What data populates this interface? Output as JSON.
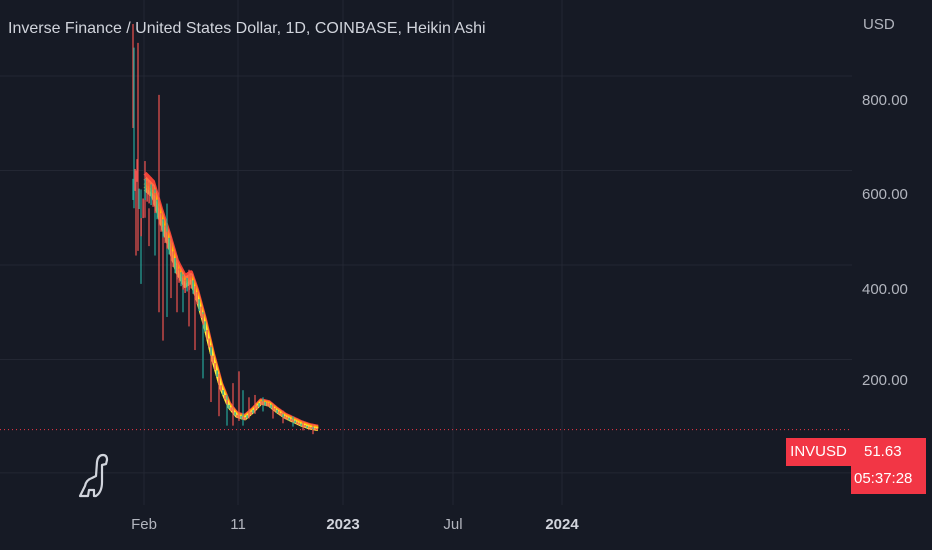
{
  "header": {
    "title": "Inverse Finance / United States Dollar, 1D, COINBASE, Heikin Ashi",
    "currency": "USD"
  },
  "price_tag": {
    "symbol": "INVUSD",
    "price": "51.63",
    "countdown": "05:37:28"
  },
  "colors": {
    "background": "#161A25",
    "up": "#26A69A",
    "down": "#EF5350",
    "tag": "#F23645",
    "ribbon": [
      "#F44336",
      "#FF7043",
      "#FF9800",
      "#FFC107",
      "#FFEB3B"
    ]
  },
  "logo_icon": "dinosaur-icon",
  "chart_data": {
    "type": "candlestick",
    "title": "Inverse Finance / United States Dollar, 1D, COINBASE, Heikin Ashi",
    "y_axis": {
      "label": "USD",
      "ticks": [
        "800.00",
        "600.00",
        "400.00",
        "200.00"
      ],
      "tick_values": [
        800,
        600,
        400,
        200
      ],
      "range": [
        -80,
        980
      ]
    },
    "x_axis": {
      "ticks": [
        "Feb",
        "11",
        "2023",
        "Jul",
        "2024"
      ],
      "bold_ticks": [
        "2023",
        "2024"
      ]
    },
    "last_price": 51.63,
    "trend": [
      {
        "x": 0,
        "y": 560
      },
      {
        "x": 4,
        "y": 600
      },
      {
        "x": 8,
        "y": 480
      },
      {
        "x": 12,
        "y": 560
      },
      {
        "x": 20,
        "y": 545
      },
      {
        "x": 28,
        "y": 490
      },
      {
        "x": 36,
        "y": 440
      },
      {
        "x": 44,
        "y": 385
      },
      {
        "x": 52,
        "y": 355
      },
      {
        "x": 58,
        "y": 365
      },
      {
        "x": 64,
        "y": 330
      },
      {
        "x": 72,
        "y": 270
      },
      {
        "x": 80,
        "y": 200
      },
      {
        "x": 88,
        "y": 140
      },
      {
        "x": 96,
        "y": 100
      },
      {
        "x": 104,
        "y": 80
      },
      {
        "x": 112,
        "y": 75
      },
      {
        "x": 120,
        "y": 90
      },
      {
        "x": 128,
        "y": 108
      },
      {
        "x": 136,
        "y": 104
      },
      {
        "x": 144,
        "y": 90
      },
      {
        "x": 152,
        "y": 78
      },
      {
        "x": 160,
        "y": 70
      },
      {
        "x": 168,
        "y": 62
      },
      {
        "x": 176,
        "y": 56
      },
      {
        "x": 185,
        "y": 52
      }
    ],
    "spikes": [
      {
        "x": 0,
        "high": 910,
        "low": 690
      },
      {
        "x": 1,
        "high": 860,
        "low": 520
      },
      {
        "x": 3,
        "high": 600,
        "low": 420
      },
      {
        "x": 5,
        "high": 870,
        "low": 430
      },
      {
        "x": 8,
        "high": 560,
        "low": 360
      },
      {
        "x": 12,
        "high": 620,
        "low": 500
      },
      {
        "x": 16,
        "high": 520,
        "low": 440
      },
      {
        "x": 22,
        "high": 560,
        "low": 420
      },
      {
        "x": 26,
        "high": 760,
        "low": 300
      },
      {
        "x": 30,
        "high": 480,
        "low": 240
      },
      {
        "x": 34,
        "high": 530,
        "low": 290
      },
      {
        "x": 38,
        "high": 460,
        "low": 330
      },
      {
        "x": 44,
        "high": 420,
        "low": 300
      },
      {
        "x": 50,
        "high": 380,
        "low": 300
      },
      {
        "x": 56,
        "high": 390,
        "low": 270
      },
      {
        "x": 62,
        "high": 350,
        "low": 220
      },
      {
        "x": 70,
        "high": 300,
        "low": 160
      },
      {
        "x": 78,
        "high": 230,
        "low": 110
      },
      {
        "x": 86,
        "high": 170,
        "low": 80
      },
      {
        "x": 94,
        "high": 125,
        "low": 60
      },
      {
        "x": 100,
        "high": 150,
        "low": 60
      },
      {
        "x": 106,
        "high": 175,
        "low": 70
      },
      {
        "x": 110,
        "high": 135,
        "low": 60
      },
      {
        "x": 116,
        "high": 120,
        "low": 75
      },
      {
        "x": 122,
        "high": 125,
        "low": 85
      },
      {
        "x": 130,
        "high": 120,
        "low": 90
      },
      {
        "x": 140,
        "high": 105,
        "low": 75
      },
      {
        "x": 150,
        "high": 92,
        "low": 65
      },
      {
        "x": 160,
        "high": 80,
        "low": 58
      },
      {
        "x": 170,
        "high": 70,
        "low": 50
      },
      {
        "x": 180,
        "high": 62,
        "low": 42
      }
    ]
  }
}
